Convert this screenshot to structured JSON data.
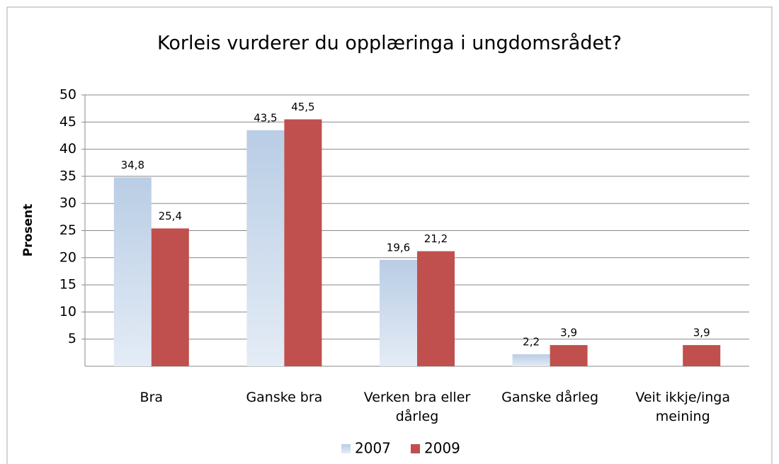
{
  "chart_data": {
    "type": "bar",
    "title": "Korleis vurderer du opplæringa i ungdomsrådet?",
    "y_label": "Prosent",
    "categories": [
      "Bra",
      "Ganske bra",
      "Verken bra eller dårleg",
      "Ganske dårleg",
      "Veit ikkje/inga meining"
    ],
    "series": [
      {
        "name": "2007",
        "color": "#b9cde5",
        "values": [
          34.8,
          43.5,
          19.6,
          2.2,
          null
        ],
        "value_labels": [
          "34,8",
          "43,5",
          "19,6",
          "2,2",
          null
        ]
      },
      {
        "name": "2009",
        "color": "#c0504d",
        "values": [
          25.4,
          45.5,
          21.2,
          3.9,
          3.9
        ],
        "value_labels": [
          "25,4",
          "45,5",
          "21,2",
          "3,9",
          "3,9"
        ]
      }
    ],
    "ylim": [
      0,
      50
    ],
    "yticks": [
      5,
      10,
      15,
      20,
      25,
      30,
      35,
      40,
      45,
      50
    ],
    "grid": true,
    "legend": "bottom"
  }
}
